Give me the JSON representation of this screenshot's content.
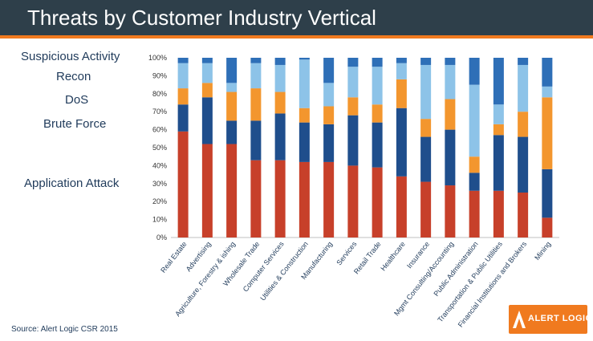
{
  "chart_data": {
    "type": "bar",
    "stacked": true,
    "title": "Threats by Customer Industry Vertical",
    "source": "Source: Alert Logic CSR 2015",
    "categories": [
      "Real Estate",
      "Advertising",
      "Agriculture, Forestry & ishing",
      "Wholesale Trade",
      "Computer Services",
      "Utilities & Construction",
      "Manufacturing",
      "Services",
      "Retail Trade",
      "Healthcare",
      "Insurance",
      "Mgmt Consulting/Accounting",
      "Public Administration",
      "Transportation & Public Utilities",
      "Financial Institutions and Brokers",
      "Mining"
    ],
    "ylim": [
      0,
      100
    ],
    "yticks": [
      "0%",
      "10%",
      "20%",
      "30%",
      "40%",
      "50%",
      "60%",
      "70%",
      "80%",
      "90%",
      "100%"
    ],
    "legend_order": [
      "Suspicious Activity",
      "Recon",
      "DoS",
      "Brute Force",
      "Application Attack"
    ],
    "series": [
      {
        "name": "Application Attack",
        "color": "#c7402a",
        "values": [
          59,
          52,
          52,
          43,
          43,
          42,
          42,
          40,
          39,
          34,
          31,
          29,
          26,
          26,
          25,
          11
        ]
      },
      {
        "name": "Brute Force",
        "color": "#1f4e8c",
        "values": [
          15,
          26,
          13,
          22,
          26,
          22,
          21,
          28,
          25,
          38,
          25,
          31,
          10,
          31,
          31,
          27
        ]
      },
      {
        "name": "DoS",
        "color": "#f3962e",
        "values": [
          9,
          8,
          16,
          18,
          12,
          8,
          10,
          10,
          10,
          16,
          10,
          17,
          9,
          6,
          14,
          40
        ]
      },
      {
        "name": "Recon",
        "color": "#8dc3e8",
        "values": [
          14,
          11,
          5,
          14,
          15,
          27,
          13,
          17,
          21,
          9,
          30,
          19,
          40,
          11,
          26,
          6
        ]
      },
      {
        "name": "Suspicious Activity",
        "color": "#2e6fb7",
        "values": [
          3,
          3,
          14,
          3,
          4,
          1,
          14,
          5,
          5,
          3,
          4,
          4,
          15,
          26,
          4,
          16
        ]
      }
    ]
  },
  "logo": {
    "text": "ALERT LOGIC",
    "color": "#f07a1f"
  }
}
